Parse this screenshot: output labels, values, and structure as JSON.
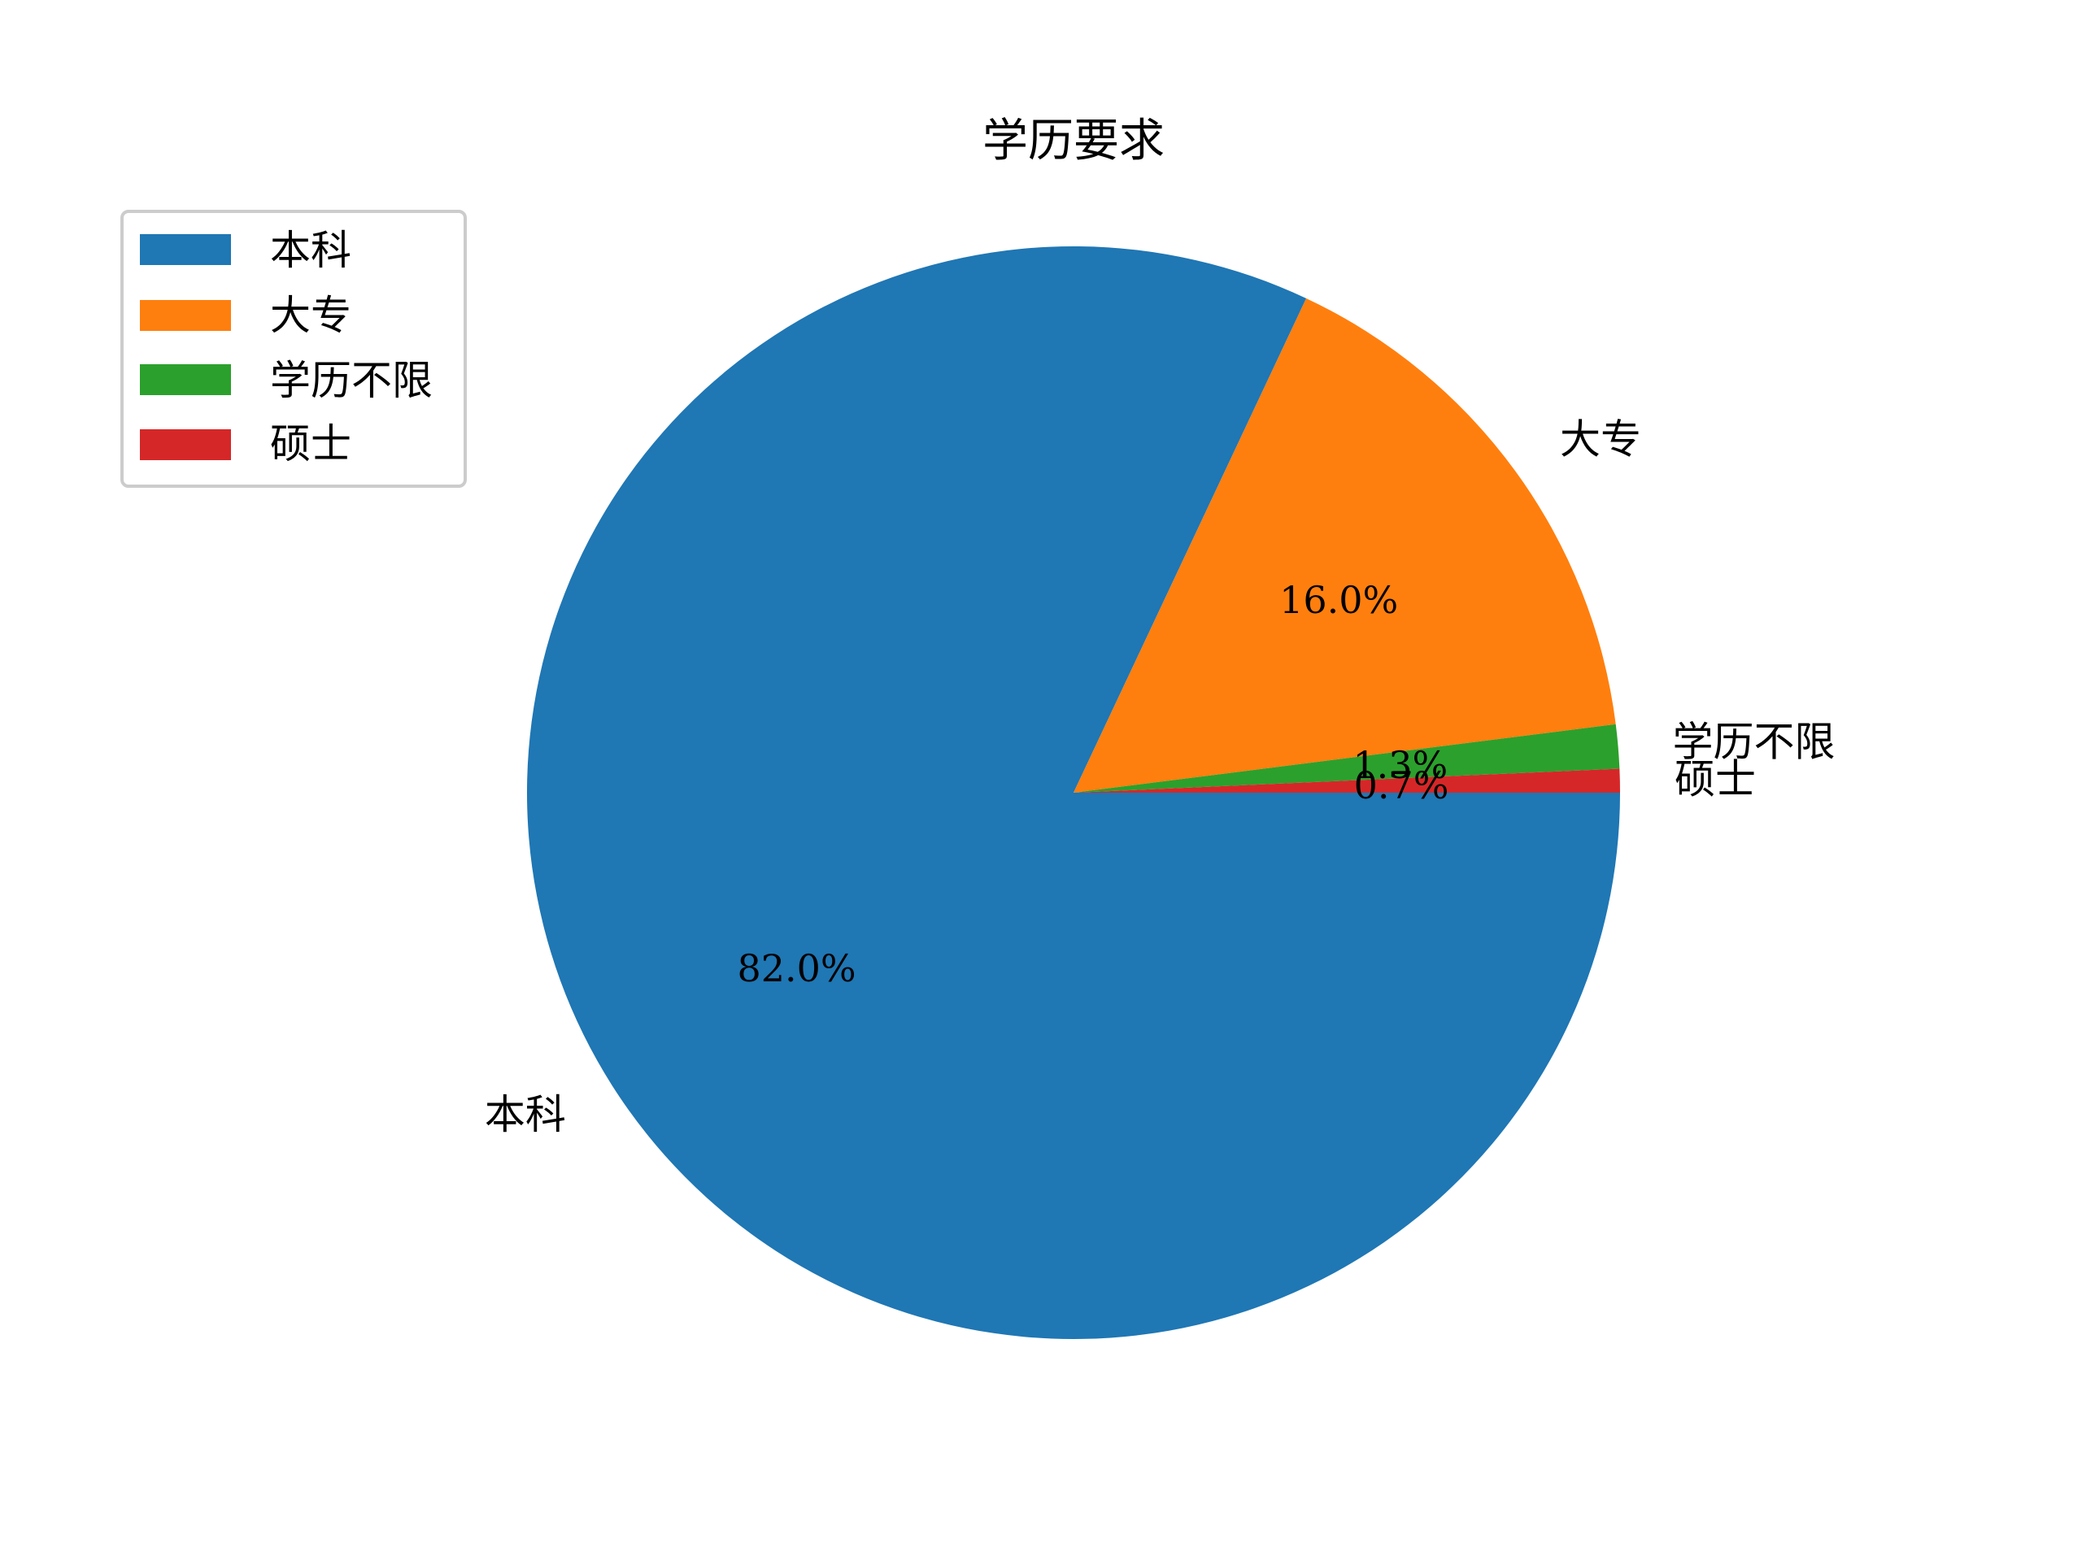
{
  "chart_data": {
    "type": "pie",
    "title": "学历要求",
    "categories": [
      "本科",
      "大专",
      "学历不限",
      "硕士"
    ],
    "values": [
      82.0,
      16.0,
      1.3,
      0.7
    ],
    "percent_labels": [
      "82.0%",
      "16.0%",
      "1.3%",
      "0.7%"
    ],
    "colors": [
      "#1f77b4",
      "#ff7f0e",
      "#2ca02c",
      "#d62728"
    ],
    "start_angle_deg": 0,
    "direction": "clockwise",
    "legend": {
      "placement": "upper-left",
      "entries": [
        "本科",
        "大专",
        "学历不限",
        "硕士"
      ]
    }
  }
}
